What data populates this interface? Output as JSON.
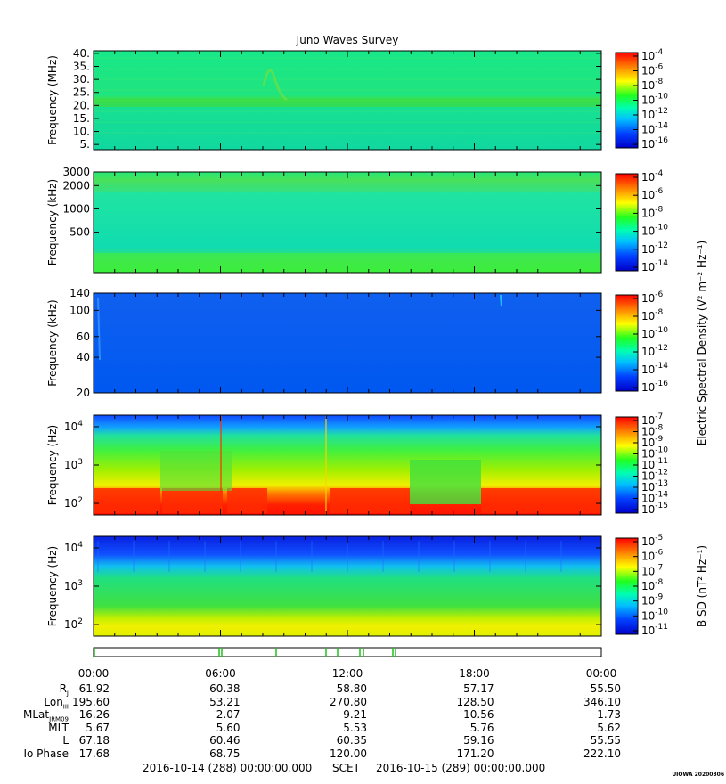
{
  "title": "Juno Waves Survey",
  "panels": [
    {
      "ylabel": "Frequency (MHz)",
      "yscale": "linear",
      "ylim": [
        3,
        41
      ],
      "yticks": [
        {
          "v": 5,
          "label": "5."
        },
        {
          "v": 10,
          "label": "10."
        },
        {
          "v": 15,
          "label": "15."
        },
        {
          "v": 20,
          "label": "20."
        },
        {
          "v": 25,
          "label": "25."
        },
        {
          "v": 30,
          "label": "30."
        },
        {
          "v": 35,
          "label": "35."
        },
        {
          "v": 40,
          "label": "40."
        }
      ],
      "cbar": {
        "label": "",
        "exps": [
          "-4",
          "-6",
          "-8",
          "-10",
          "-12",
          "-14",
          "-16"
        ]
      }
    },
    {
      "ylabel": "Frequency (kHz)",
      "yscale": "log",
      "ylim": [
        150,
        3000
      ],
      "yticks": [
        {
          "v": 500,
          "label": "500"
        },
        {
          "v": 1000,
          "label": "1000"
        },
        {
          "v": 2000,
          "label": "2000"
        },
        {
          "v": 3000,
          "label": "3000"
        }
      ],
      "cbar": {
        "label": "",
        "exps": [
          "-4",
          "-6",
          "-8",
          "-10",
          "-12",
          "-14"
        ]
      }
    },
    {
      "ylabel": "Frequency (kHz)",
      "yscale": "log",
      "ylim": [
        20,
        140
      ],
      "yticks": [
        {
          "v": 20,
          "label": "20"
        },
        {
          "v": 40,
          "label": "40"
        },
        {
          "v": 60,
          "label": "60"
        },
        {
          "v": 100,
          "label": "100"
        },
        {
          "v": 140,
          "label": "140"
        }
      ],
      "cbar": {
        "label": "Electric Spectral Density (V² m⁻² Hz⁻¹)",
        "exps": [
          "-6",
          "-8",
          "-10",
          "-12",
          "-14",
          "-16"
        ]
      }
    },
    {
      "ylabel": "Frequency (Hz)",
      "yscale": "log",
      "ylim": [
        50,
        20000
      ],
      "yticks": [
        {
          "v": 100,
          "label": "10",
          "exp": "2"
        },
        {
          "v": 1000,
          "label": "10",
          "exp": "3"
        },
        {
          "v": 10000,
          "label": "10",
          "exp": "4"
        }
      ],
      "cbar": {
        "label": "",
        "exps": [
          "-7",
          "-8",
          "-9",
          "-10",
          "-11",
          "-12",
          "-13",
          "-14",
          "-15"
        ]
      }
    },
    {
      "ylabel": "Frequency (Hz)",
      "yscale": "log",
      "ylim": [
        50,
        20000
      ],
      "yticks": [
        {
          "v": 100,
          "label": "10",
          "exp": "2"
        },
        {
          "v": 1000,
          "label": "10",
          "exp": "3"
        },
        {
          "v": 10000,
          "label": "10",
          "exp": "4"
        }
      ],
      "cbar": {
        "label": "B SD (nT² Hz⁻¹)",
        "exps": [
          "-5",
          "-6",
          "-7",
          "-8",
          "-9",
          "-10",
          "-11"
        ]
      }
    }
  ],
  "chart_data": {
    "type": "heatmap",
    "title": "Juno Waves Survey",
    "x_range": [
      "2016-10-14 00:00",
      "2016-10-15 00:00"
    ],
    "xticks": [
      "00:00",
      "06:00",
      "12:00",
      "18:00",
      "00:00"
    ],
    "colormap": "jet"
  },
  "ephemeris": {
    "rows": [
      {
        "label": "R",
        "sub": "J",
        "values": [
          "61.92",
          "60.38",
          "58.80",
          "57.17",
          "55.50"
        ]
      },
      {
        "label": "Lon",
        "sub": "III",
        "values": [
          "195.60",
          "53.21",
          "270.80",
          "128.50",
          "346.10"
        ]
      },
      {
        "label": "MLat",
        "sub": "JRM09",
        "values": [
          "16.26",
          "-2.07",
          "9.21",
          "10.56",
          "-1.73"
        ]
      },
      {
        "label": "MLT",
        "sub": "",
        "values": [
          "5.67",
          "5.60",
          "5.53",
          "5.76",
          "5.62"
        ]
      },
      {
        "label": "L",
        "sub": "",
        "values": [
          "67.18",
          "60.46",
          "60.35",
          "59.16",
          "55.55"
        ]
      },
      {
        "label": "Io Phase",
        "sub": "",
        "values": [
          "17.68",
          "68.75",
          "120.00",
          "171.20",
          "222.10"
        ]
      }
    ]
  },
  "footer": {
    "start": "2016-10-14 (288) 00:00:00.000",
    "mid": "SCET",
    "end": "2016-10-15 (289) 00:00:00.000"
  },
  "stamp": "UIOWA 20200306"
}
